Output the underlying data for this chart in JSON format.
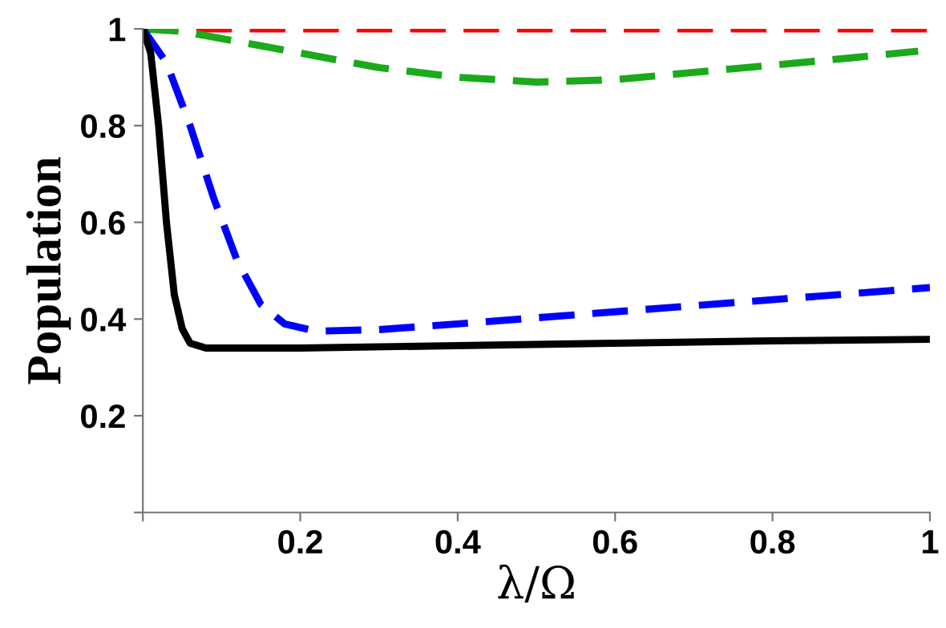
{
  "chart_data": {
    "type": "line",
    "xlabel": "λ/Ω",
    "ylabel": "Population",
    "xlim": [
      0,
      1
    ],
    "ylim": [
      0,
      1
    ],
    "xticks": [
      {
        "value": 0,
        "label": null
      },
      0.2,
      0.4,
      0.6,
      0.8,
      1
    ],
    "yticks": [
      {
        "value": 0,
        "label": null
      },
      0.2,
      0.4,
      0.6,
      0.8,
      1
    ],
    "grid": false,
    "legend": false,
    "marker": "none",
    "series": [
      {
        "color": "#ff0000",
        "line_style": "dashed",
        "x": [
          0,
          0.25,
          0.5,
          0.75,
          1
        ],
        "values": [
          1,
          1,
          1,
          1,
          1
        ]
      },
      {
        "color": "#1aaa1a",
        "line_style": "dashed",
        "x": [
          0,
          0.05,
          0.1,
          0.2,
          0.3,
          0.4,
          0.5,
          0.6,
          0.7,
          0.8,
          0.9,
          0.985
        ],
        "values": [
          1,
          0.995,
          0.98,
          0.95,
          0.92,
          0.9,
          0.89,
          0.895,
          0.91,
          0.925,
          0.94,
          0.954
        ]
      },
      {
        "color": "#0000ff",
        "line_style": "dashed",
        "x": [
          0,
          0.03,
          0.06,
          0.09,
          0.12,
          0.15,
          0.18,
          0.22,
          0.3,
          0.4,
          0.6,
          0.8,
          1
        ],
        "values": [
          1,
          0.93,
          0.8,
          0.65,
          0.52,
          0.43,
          0.39,
          0.375,
          0.378,
          0.39,
          0.415,
          0.44,
          0.465
        ]
      },
      {
        "color": "#000000",
        "line_style": "solid",
        "x": [
          0,
          0.01,
          0.02,
          0.03,
          0.04,
          0.05,
          0.06,
          0.08,
          0.2,
          0.4,
          0.6,
          0.8,
          1
        ],
        "values": [
          1,
          0.95,
          0.8,
          0.6,
          0.45,
          0.38,
          0.35,
          0.34,
          0.34,
          0.345,
          0.35,
          0.355,
          0.358
        ]
      }
    ]
  }
}
